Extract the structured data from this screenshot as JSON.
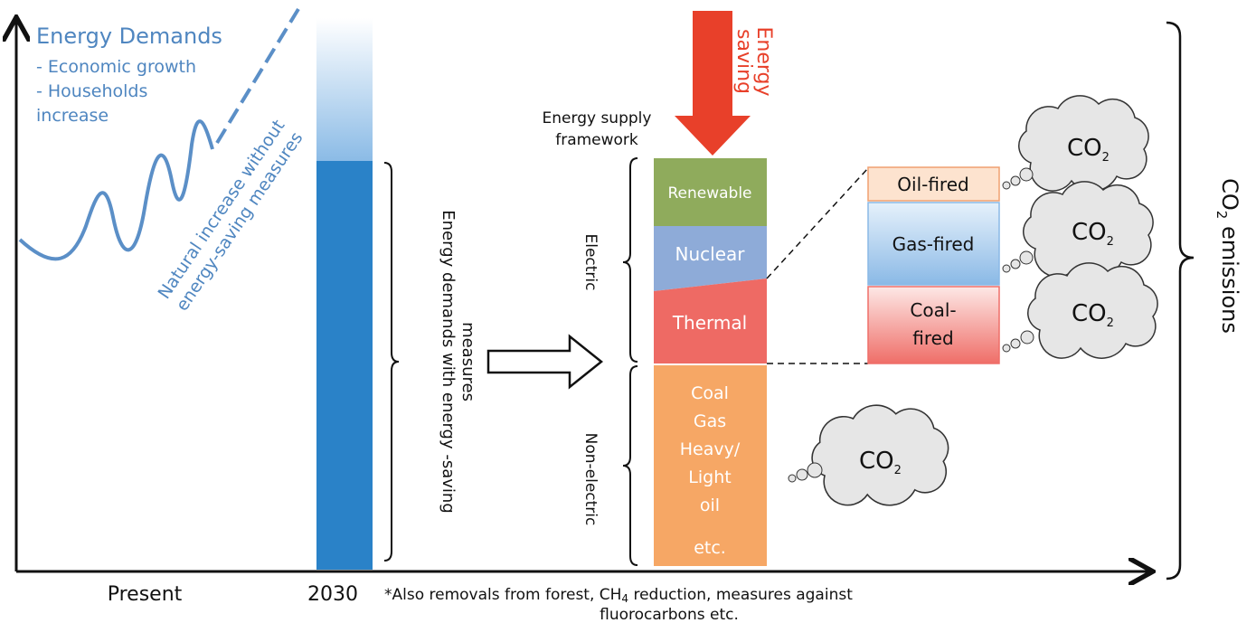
{
  "axes": {
    "x_start": "Present",
    "x_end": "2030"
  },
  "demand_trend": {
    "title": "Energy Demands",
    "drivers": [
      "- Economic growth",
      "- Households",
      "increase"
    ],
    "curve_label": [
      "Natural increase without",
      "energy-saving measures"
    ]
  },
  "demand_bar": {
    "label": [
      "Energy demands with energy -saving",
      "measures"
    ]
  },
  "energy_saving": [
    "Energy",
    "saving"
  ],
  "supply": {
    "title": [
      "Energy supply",
      "framework"
    ],
    "groups": {
      "electric": "Electric",
      "non_electric": "Non-electric"
    },
    "segments": {
      "renewable": "Renewable",
      "nuclear": "Nuclear",
      "thermal": "Thermal",
      "non_electric": [
        "Coal",
        "Gas",
        "Heavy/",
        "Light",
        "oil",
        "etc."
      ]
    }
  },
  "thermal_types": [
    [
      "Oil-fired"
    ],
    [
      "Gas-fired"
    ],
    [
      "Coal-",
      "fired"
    ]
  ],
  "emission_clouds": [
    {
      "main": "CO",
      "sub": "2"
    },
    {
      "main": "CO",
      "sub": "2"
    },
    {
      "main": "CO",
      "sub": "2"
    },
    {
      "main": "CO",
      "sub": "2"
    }
  ],
  "total": {
    "main": "CO",
    "sub": "2",
    "rest": " emissions"
  },
  "footnote": {
    "line1": [
      "*Also removals from forest, CH",
      "4",
      " reduction, measures against"
    ],
    "line2": "fluorocarbons etc."
  }
}
